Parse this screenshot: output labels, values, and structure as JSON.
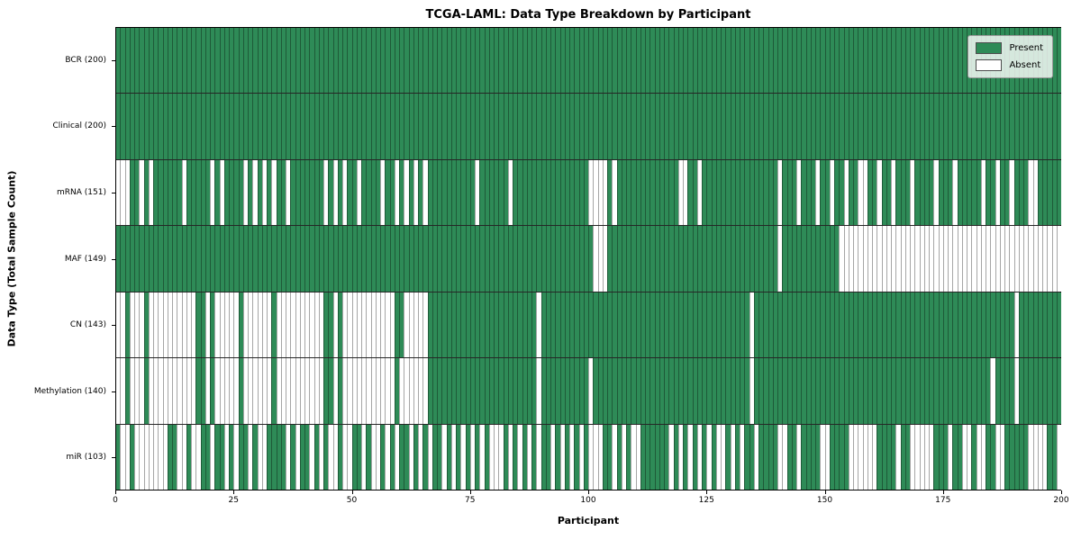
{
  "chart_data": {
    "type": "heatmap",
    "title": "TCGA-LAML: Data Type Breakdown by Participant",
    "xlabel": "Participant",
    "ylabel": "Data Type (Total Sample Count)",
    "x_ticks": [
      0,
      25,
      50,
      75,
      100,
      125,
      150,
      175,
      200
    ],
    "x_range": [
      0,
      200
    ],
    "n_participants": 200,
    "grid": "cell-outlines",
    "legend": {
      "position": "upper right",
      "entries": [
        {
          "label": "Present",
          "color": "#2e8b57"
        },
        {
          "label": "Absent",
          "color": "#ffffff"
        }
      ]
    },
    "rows": [
      {
        "name": "BCR",
        "label": "BCR (200)",
        "present_count": 200,
        "absent": []
      },
      {
        "name": "Clinical",
        "label": "Clinical (200)",
        "present_count": 200,
        "absent": []
      },
      {
        "name": "mRNA",
        "label": "mRNA (151)",
        "present_count": 151,
        "absent": [
          0,
          1,
          2,
          5,
          7,
          14,
          20,
          22,
          27,
          29,
          31,
          33,
          36,
          44,
          46,
          48,
          51,
          56,
          59,
          61,
          63,
          65,
          76,
          83,
          100,
          101,
          102,
          103,
          105,
          119,
          120,
          123,
          140,
          144,
          148,
          151,
          154,
          157,
          158,
          161,
          164,
          168,
          173,
          177,
          183,
          186,
          189,
          193,
          194
        ]
      },
      {
        "name": "MAF",
        "label": "MAF (149)",
        "present_count": 149,
        "absent": [
          101,
          102,
          103,
          140,
          153,
          154,
          155,
          156,
          157,
          158,
          159,
          160,
          161,
          162,
          163,
          164,
          165,
          166,
          167,
          168,
          169,
          170,
          171,
          172,
          173,
          174,
          175,
          176,
          177,
          178,
          179,
          180,
          181,
          182,
          183,
          184,
          185,
          186,
          187,
          188,
          189,
          190,
          191,
          192,
          193,
          194,
          195,
          196,
          197,
          198,
          199
        ]
      },
      {
        "name": "CN",
        "label": "CN (143)",
        "present_count": 143,
        "absent": [
          0,
          1,
          3,
          4,
          5,
          7,
          8,
          9,
          10,
          11,
          12,
          13,
          14,
          15,
          16,
          19,
          21,
          22,
          23,
          24,
          25,
          27,
          28,
          29,
          30,
          31,
          32,
          34,
          35,
          36,
          37,
          38,
          39,
          40,
          41,
          42,
          43,
          46,
          48,
          49,
          50,
          51,
          52,
          53,
          54,
          55,
          56,
          57,
          58,
          61,
          62,
          63,
          64,
          65,
          89,
          134,
          190
        ]
      },
      {
        "name": "Methylation",
        "label": "Methylation (140)",
        "present_count": 140,
        "absent": [
          0,
          1,
          3,
          4,
          5,
          7,
          8,
          9,
          10,
          11,
          12,
          13,
          14,
          15,
          16,
          19,
          21,
          22,
          23,
          24,
          25,
          27,
          28,
          29,
          30,
          31,
          32,
          34,
          35,
          36,
          37,
          38,
          39,
          40,
          41,
          42,
          43,
          46,
          48,
          49,
          50,
          51,
          52,
          53,
          54,
          55,
          56,
          57,
          58,
          60,
          61,
          62,
          63,
          64,
          65,
          89,
          100,
          134,
          185,
          190
        ]
      },
      {
        "name": "miR",
        "label": "miR (103)",
        "present_count": 103,
        "absent": [
          1,
          2,
          4,
          5,
          6,
          7,
          8,
          9,
          10,
          13,
          14,
          16,
          17,
          20,
          23,
          25,
          28,
          30,
          31,
          36,
          38,
          41,
          43,
          45,
          46,
          48,
          49,
          52,
          54,
          55,
          57,
          59,
          62,
          64,
          66,
          69,
          71,
          73,
          75,
          77,
          79,
          80,
          81,
          83,
          85,
          87,
          89,
          92,
          94,
          96,
          98,
          100,
          101,
          102,
          105,
          107,
          109,
          110,
          117,
          119,
          121,
          123,
          125,
          127,
          128,
          130,
          132,
          135,
          140,
          141,
          144,
          149,
          150,
          155,
          156,
          157,
          158,
          159,
          160,
          165,
          168,
          169,
          170,
          171,
          172,
          176,
          179,
          180,
          182,
          183,
          186,
          187,
          193,
          194,
          195,
          196,
          199
        ]
      }
    ]
  }
}
